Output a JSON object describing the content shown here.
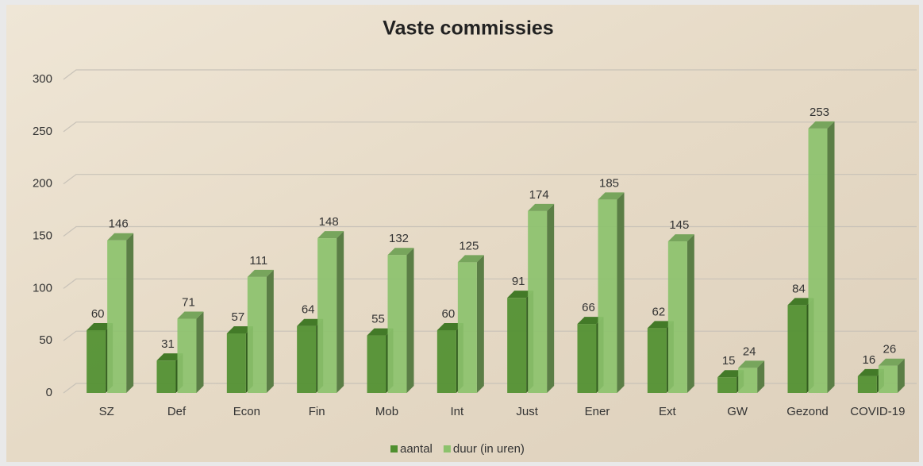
{
  "chart_data": {
    "type": "bar",
    "title": "Vaste commissies",
    "categories": [
      "SZ",
      "Def",
      "Econ",
      "Fin",
      "Mob",
      "Int",
      "Just",
      "Ener",
      "Ext",
      "GW",
      "Gezond",
      "COVID-19"
    ],
    "series": [
      {
        "name": "aantal",
        "color": "#4f8f2f",
        "values": [
          60,
          31,
          57,
          64,
          55,
          60,
          91,
          66,
          62,
          15,
          84,
          16
        ]
      },
      {
        "name": "duur (in uren)",
        "color": "#8cc26c",
        "values": [
          146,
          71,
          111,
          148,
          132,
          125,
          174,
          185,
          145,
          24,
          253,
          26
        ]
      }
    ],
    "ylim": [
      0,
      300
    ],
    "yticks": [
      0,
      50,
      100,
      150,
      200,
      250,
      300
    ],
    "grid": true,
    "legend": "bottom"
  }
}
